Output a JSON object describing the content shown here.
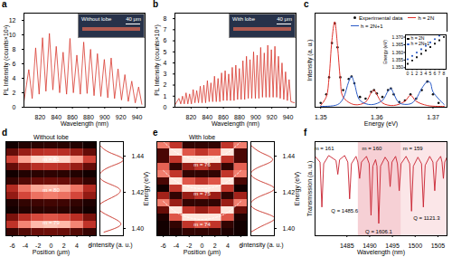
{
  "chart_data": [
    {
      "panel": "a",
      "type": "line",
      "color": "#d8392f",
      "xlabel": "Wavelength (nm)",
      "ylabel": "PL Intensity (counts×10³)",
      "xlim": [
        800,
        950
      ],
      "xticks": [
        820,
        840,
        860,
        880,
        900,
        920,
        940
      ],
      "ylim": [
        0,
        13
      ],
      "yticks": [
        0,
        2,
        4,
        6,
        8,
        10,
        12
      ],
      "inset": {
        "label": "Without lobe",
        "scale_bar": "40 μm"
      },
      "x": [
        800,
        806,
        810.2,
        814.5,
        818.8,
        823,
        827.2,
        831.5,
        835.8,
        840,
        844.2,
        848.5,
        852.8,
        857,
        861.2,
        865.5,
        869.8,
        874,
        878.2,
        882.5,
        886.8,
        891,
        895.2,
        899.5,
        903.8,
        908,
        912.2,
        916.5,
        920.8,
        925,
        929.2,
        933.5,
        937.8,
        942,
        946
      ],
      "values": [
        0.8,
        5.2,
        1.2,
        8.2,
        1.8,
        9.6,
        2.2,
        10.2,
        2.4,
        8.4,
        2.0,
        7.6,
        1.8,
        9.5,
        2.0,
        7.2,
        1.8,
        9.0,
        1.9,
        8.0,
        1.6,
        7.4,
        1.5,
        6.6,
        1.3,
        6.8,
        1.2,
        5.3,
        1.0,
        4.5,
        0.8,
        3.6,
        0.6,
        2.8,
        0.4
      ]
    },
    {
      "panel": "b",
      "type": "line",
      "color": "#d8392f",
      "xlabel": "Wavelength (nm)",
      "ylabel": "PL Intensity (counts×10⁴)",
      "xlim": [
        800,
        950
      ],
      "xticks": [
        820,
        840,
        860,
        880,
        900,
        920,
        940
      ],
      "ylim": [
        0,
        8.5
      ],
      "yticks": [
        0,
        1,
        2,
        3,
        4,
        5,
        6,
        7,
        8
      ],
      "inset": {
        "label": "With lobe",
        "scale_bar": "40 μm"
      },
      "x": [
        800,
        805,
        807.2,
        809.4,
        811.6,
        813.8,
        816,
        818.2,
        820.4,
        822.6,
        824.8,
        827,
        829.2,
        831.4,
        833.6,
        835.8,
        838,
        840.2,
        842.4,
        844.6,
        846.8,
        849,
        851.2,
        853.4,
        855.6,
        857.8,
        860,
        862.2,
        864.4,
        866.6,
        868.8,
        871,
        873.2,
        875.4,
        877.6,
        879.8,
        882,
        884.2,
        886.4,
        888.6,
        890.8,
        893,
        895.2,
        897.4,
        899.6,
        901.8,
        904,
        906.2,
        908.4,
        910.6,
        912.8,
        915,
        917.2,
        919.4,
        921.6,
        923.8,
        926,
        928.2,
        930.4,
        932.6,
        934.8,
        937,
        939.2,
        941.4,
        943.6,
        948
      ],
      "values": [
        0.2,
        0.8,
        0.3,
        1.0,
        0.3,
        1.3,
        0.3,
        1.2,
        0.3,
        1.6,
        0.4,
        1.5,
        0.4,
        1.9,
        0.4,
        2.0,
        0.4,
        2.4,
        0.5,
        2.2,
        0.5,
        2.8,
        0.5,
        2.6,
        0.5,
        3.1,
        0.6,
        3.3,
        0.6,
        3.0,
        0.6,
        3.6,
        0.6,
        3.8,
        0.7,
        3.5,
        0.7,
        4.2,
        0.7,
        4.6,
        0.8,
        4.3,
        0.8,
        5.0,
        0.8,
        4.7,
        0.8,
        5.4,
        0.9,
        4.9,
        0.9,
        5.6,
        0.9,
        5.2,
        0.9,
        5.5,
        0.9,
        4.6,
        0.8,
        4.0,
        0.7,
        3.2,
        0.6,
        2.5,
        0.5,
        0.4
      ]
    },
    {
      "panel": "c",
      "type": "line",
      "legend": "top",
      "tick_labels": "x",
      "xlabel": "Energy (eV)",
      "ylabel": "Intensity (a. u.)",
      "xlim": [
        1.349,
        1.3725
      ],
      "xticks": [
        1.35,
        1.36,
        1.37
      ],
      "ylim": [
        0,
        1.1
      ],
      "series": [
        {
          "name": "Experimental data",
          "type": "scatter",
          "marker": "circle",
          "color": "#111111",
          "x": [
            1.35,
            1.351,
            1.3515,
            1.352,
            1.3525,
            1.353,
            1.3535,
            1.354,
            1.355,
            1.3555,
            1.356,
            1.357,
            1.358,
            1.359,
            1.3595,
            1.36,
            1.361,
            1.362,
            1.3625,
            1.363,
            1.364,
            1.365,
            1.366,
            1.367,
            1.368,
            1.369,
            1.37,
            1.371
          ],
          "values": [
            0.05,
            0.15,
            0.35,
            0.75,
            0.98,
            0.7,
            0.35,
            0.2,
            0.33,
            0.36,
            0.28,
            0.12,
            0.1,
            0.18,
            0.2,
            0.16,
            0.12,
            0.2,
            0.22,
            0.15,
            0.06,
            0.08,
            0.15,
            0.1,
            0.2,
            0.3,
            0.15,
            0.05
          ]
        },
        {
          "name": "h = 2N",
          "type": "line",
          "line_style": "solid",
          "color": "#e0312b",
          "x": [
            1.35,
            1.351,
            1.3515,
            1.352,
            1.3525,
            1.353,
            1.3535,
            1.354,
            1.356,
            1.358,
            1.359,
            1.3595,
            1.36,
            1.361,
            1.363,
            1.365,
            1.366,
            1.367,
            1.369,
            1.372
          ],
          "values": [
            0.02,
            0.12,
            0.35,
            0.78,
            1.0,
            0.72,
            0.33,
            0.12,
            0.03,
            0.06,
            0.17,
            0.2,
            0.15,
            0.05,
            0.02,
            0.07,
            0.14,
            0.07,
            0.02,
            0.01
          ]
        },
        {
          "name": "h = 2N+1",
          "type": "line",
          "line_style": "solid",
          "color": "#2b5cc8",
          "x": [
            1.35,
            1.353,
            1.354,
            1.355,
            1.3555,
            1.356,
            1.357,
            1.359,
            1.361,
            1.362,
            1.3625,
            1.363,
            1.364,
            1.366,
            1.367,
            1.368,
            1.369,
            1.3695,
            1.37,
            1.372
          ],
          "values": [
            0.01,
            0.03,
            0.1,
            0.3,
            0.36,
            0.28,
            0.08,
            0.03,
            0.08,
            0.19,
            0.22,
            0.16,
            0.05,
            0.04,
            0.1,
            0.22,
            0.3,
            0.29,
            0.18,
            0.03
          ]
        }
      ],
      "inset": {
        "type": "scatter",
        "legend": "top-left",
        "ylabel": "Energy (eV)",
        "xlim": [
          -0.5,
          8.5
        ],
        "xticks": [
          0,
          1,
          2,
          3,
          4,
          5,
          6,
          7,
          8
        ],
        "ylim": [
          1.349,
          1.3715
        ],
        "yticks": [
          {
            "value": 1.35,
            "label": "1.350"
          },
          {
            "value": 1.355,
            "label": "1.355"
          },
          {
            "value": 1.36,
            "label": "1.360"
          },
          {
            "value": 1.365,
            "label": "1.365"
          },
          {
            "value": 1.37,
            "label": "1.370"
          }
        ],
        "series": [
          {
            "name": "h = 2N",
            "marker": "square",
            "color": "#111111",
            "x": [
              0,
              1,
              2,
              3,
              4,
              5,
              6,
              7,
              8
            ],
            "values": [
              1.3525,
              1.3547,
              1.3569,
              1.3591,
              1.3613,
              1.3635,
              1.3657,
              1.3679,
              1.3701
            ]
          },
          {
            "name": "h = 2N+1",
            "marker": "circle",
            "color": "#2b5cc8",
            "x": [
              0,
              1,
              2,
              3,
              4,
              5,
              6,
              7
            ],
            "values": [
              1.3555,
              1.3577,
              1.3599,
              1.3621,
              1.3643,
              1.3665,
              1.3687,
              1.3709
            ]
          }
        ]
      }
    },
    {
      "panel": "d",
      "type": "heatmap",
      "title": "Without lobe",
      "color": "#c62d21",
      "xlabel": "Position (μm)",
      "ylabel": "Energy (eV)",
      "profile_label": "Intensity (a. u.)",
      "xlim": [
        -7,
        7
      ],
      "xticks": [
        -6,
        -4,
        -2,
        0,
        2,
        4,
        6
      ],
      "ylim": [
        1.396,
        1.448
      ],
      "yticks": [
        {
          "value": 1.4,
          "label": "1.40"
        },
        {
          "value": 1.42,
          "label": "1.42"
        },
        {
          "value": 1.44,
          "label": "1.44"
        }
      ],
      "positions": [
        -6,
        -4,
        -2,
        0,
        2,
        4,
        6
      ],
      "energies": [
        1.398,
        1.402,
        1.406,
        1.41,
        1.414,
        1.418,
        1.422,
        1.426,
        1.43,
        1.434,
        1.438,
        1.442,
        1.446
      ],
      "cells": [
        [
          0.17,
          0.24,
          0.29,
          0.3,
          0.29,
          0.24,
          0.17
        ],
        [
          0.5,
          0.72,
          0.86,
          0.9,
          0.86,
          0.72,
          0.5
        ],
        [
          0.33,
          0.48,
          0.57,
          0.6,
          0.57,
          0.48,
          0.33
        ],
        [
          0.08,
          0.12,
          0.14,
          0.15,
          0.14,
          0.12,
          0.08
        ],
        [
          0.11,
          0.16,
          0.19,
          0.2,
          0.19,
          0.16,
          0.11
        ],
        [
          0.39,
          0.56,
          0.67,
          0.7,
          0.67,
          0.56,
          0.39
        ],
        [
          0.47,
          0.68,
          0.81,
          0.85,
          0.81,
          0.68,
          0.47
        ],
        [
          0.17,
          0.24,
          0.29,
          0.3,
          0.29,
          0.24,
          0.17
        ],
        [
          0.08,
          0.12,
          0.14,
          0.15,
          0.14,
          0.12,
          0.08
        ],
        [
          0.28,
          0.4,
          0.48,
          0.5,
          0.48,
          0.4,
          0.28
        ],
        [
          0.55,
          0.8,
          0.95,
          1.0,
          0.95,
          0.8,
          0.55
        ],
        [
          0.28,
          0.4,
          0.48,
          0.5,
          0.48,
          0.4,
          0.28
        ],
        [
          0.08,
          0.12,
          0.14,
          0.15,
          0.14,
          0.12,
          0.08
        ]
      ],
      "profile": [
        0.3,
        0.9,
        0.6,
        0.15,
        0.2,
        0.7,
        0.85,
        0.3,
        0.15,
        0.5,
        1.0,
        0.5,
        0.15
      ],
      "modes": [
        {
          "label": "m = 81",
          "energy": 1.438
        },
        {
          "label": "m = 80",
          "energy": 1.421
        },
        {
          "label": "m = 79",
          "energy": 1.403
        }
      ]
    },
    {
      "panel": "e",
      "type": "heatmap",
      "title": "With lobe",
      "color": "#c62d21",
      "xlabel": "Position (μm)",
      "ylabel": "Energy (eV)",
      "profile_label": "Intensity (a. u.)",
      "xlim": [
        -7,
        7
      ],
      "xticks": [
        -6,
        -4,
        -2,
        0,
        2,
        4,
        6
      ],
      "ylim": [
        1.396,
        1.448
      ],
      "yticks": [
        {
          "value": 1.4,
          "label": "1.40"
        },
        {
          "value": 1.42,
          "label": "1.42"
        },
        {
          "value": 1.44,
          "label": "1.44"
        }
      ],
      "positions": [
        -6,
        -4,
        -2,
        0,
        2,
        4,
        6
      ],
      "energies": [
        1.398,
        1.402,
        1.406,
        1.41,
        1.414,
        1.418,
        1.422,
        1.426,
        1.43,
        1.434,
        1.438,
        1.442,
        1.446
      ],
      "cells": [
        [
          0.07,
          0.1,
          0.15,
          0.15,
          0.15,
          0.1,
          0.07
        ],
        [
          0.07,
          0.15,
          0.5,
          0.6,
          0.5,
          0.15,
          0.07
        ],
        [
          0.1,
          0.6,
          1.0,
          1.0,
          1.0,
          0.6,
          0.1
        ],
        [
          0.28,
          1.0,
          0.5,
          0.4,
          0.5,
          1.0,
          0.28
        ],
        [
          0.7,
          0.4,
          0.15,
          0.15,
          0.15,
          0.4,
          0.7
        ],
        [
          0.42,
          0.15,
          0.4,
          0.5,
          0.4,
          0.15,
          0.42
        ],
        [
          0.07,
          0.5,
          1.0,
          1.0,
          1.0,
          0.5,
          0.07
        ],
        [
          0.21,
          1.0,
          0.6,
          0.5,
          0.6,
          1.0,
          0.21
        ],
        [
          0.7,
          0.5,
          0.15,
          0.15,
          0.15,
          0.5,
          0.7
        ],
        [
          0.63,
          0.15,
          0.4,
          0.5,
          0.4,
          0.15,
          0.63
        ],
        [
          0.21,
          0.5,
          1.0,
          1.0,
          1.0,
          0.5,
          0.21
        ],
        [
          0.21,
          1.0,
          0.6,
          0.5,
          0.6,
          1.0,
          0.21
        ],
        [
          0.7,
          0.5,
          0.15,
          0.15,
          0.15,
          0.5,
          0.7
        ]
      ],
      "profile": [
        0.2,
        0.6,
        0.9,
        0.4,
        0.2,
        0.5,
        0.9,
        0.5,
        0.2,
        0.45,
        0.85,
        0.5,
        0.2
      ],
      "line_style": "dashed",
      "curve_positions": [
        -6,
        -4,
        -2,
        0,
        2,
        4,
        6
      ],
      "modes": [
        {
          "label": "m = 76",
          "energies": [
            1.448,
            1.442,
            1.439,
            1.438,
            1.439,
            1.442,
            1.448
          ]
        },
        {
          "label": "m = 75",
          "energies": [
            1.432,
            1.426,
            1.423,
            1.422,
            1.423,
            1.426,
            1.432
          ]
        },
        {
          "label": "m = 74",
          "energies": [
            1.415,
            1.409,
            1.406,
            1.405,
            1.406,
            1.409,
            1.415
          ]
        }
      ]
    },
    {
      "panel": "f",
      "type": "line",
      "color": "#c8202f",
      "tick_labels": "x",
      "xlabel": "Wavelength (nm)",
      "ylabel": "Transmission (a. u.)",
      "xlim": [
        1478,
        1507
      ],
      "xticks": [
        1485,
        1490,
        1495,
        1500,
        1505
      ],
      "ylim": [
        0,
        1.15
      ],
      "regions": [
        {
          "x1": 1487.5,
          "x2": 1497,
          "color": "#f6d0d5"
        },
        {
          "x1": 1497,
          "x2": 1507,
          "color": "#fbe6e8"
        }
      ],
      "x": [
        1478,
        1479.1,
        1479.5,
        1479.9,
        1481,
        1482.6,
        1483,
        1483.4,
        1484.5,
        1485.2,
        1485.6,
        1486,
        1487,
        1487.4,
        1487.8,
        1488.2,
        1489.3,
        1489.9,
        1490.3,
        1490.7,
        1491.3,
        1491.6,
        1492,
        1492.4,
        1493.4,
        1494.1,
        1494.5,
        1494.9,
        1495.7,
        1496.1,
        1496.5,
        1496.9,
        1498,
        1498.8,
        1499.2,
        1499.6,
        1500.6,
        1501.4,
        1501.8,
        1502.2,
        1503.2,
        1503.9,
        1504.3,
        1504.7,
        1505.6,
        1505.9,
        1506.2,
        1506.5,
        1507
      ],
      "values": [
        0.97,
        0.9,
        0.35,
        0.88,
        0.98,
        0.92,
        0.75,
        0.93,
        0.98,
        0.9,
        0.45,
        0.88,
        0.97,
        0.9,
        0.7,
        0.9,
        0.97,
        0.88,
        0.25,
        0.85,
        0.93,
        0.85,
        0.15,
        0.85,
        0.96,
        0.9,
        0.6,
        0.9,
        0.97,
        0.88,
        0.55,
        0.88,
        0.97,
        0.88,
        0.3,
        0.85,
        0.96,
        0.88,
        0.35,
        0.86,
        0.97,
        0.9,
        0.55,
        0.9,
        0.97,
        0.9,
        0.7,
        0.9,
        0.96
      ],
      "annotations": [
        {
          "text": "m = 161",
          "x": 1480,
          "y": 1.07
        },
        {
          "text": "m = 160",
          "x": 1490.5,
          "y": 1.07
        },
        {
          "text": "m = 159",
          "x": 1499.5,
          "y": 1.07
        },
        {
          "text": "Q = 1485.6",
          "x": 1484.5,
          "y": 0.3
        },
        {
          "text": "Q = 1606.1",
          "x": 1492,
          "y": 0.05
        },
        {
          "text": "Q = 1121.3",
          "x": 1502.5,
          "y": 0.22
        }
      ]
    }
  ]
}
